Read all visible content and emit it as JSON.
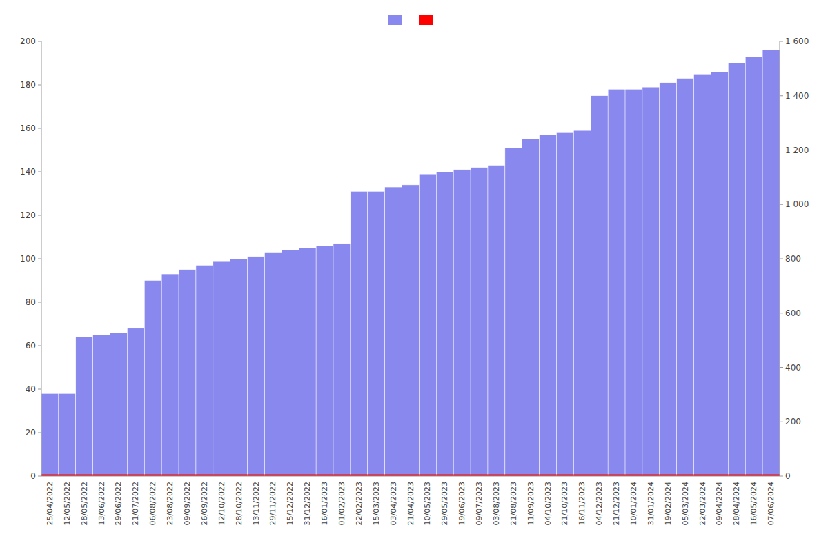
{
  "chart_data": {
    "type": "bar",
    "categories": [
      "25/04/2022",
      "12/05/2022",
      "28/05/2022",
      "13/06/2022",
      "29/06/2022",
      "21/07/2022",
      "06/08/2022",
      "23/08/2022",
      "09/09/2022",
      "26/09/2022",
      "12/10/2022",
      "28/10/2022",
      "13/11/2022",
      "29/11/2022",
      "15/12/2022",
      "31/12/2022",
      "16/01/2023",
      "01/02/2023",
      "22/02/2023",
      "15/03/2023",
      "03/04/2023",
      "21/04/2023",
      "10/05/2023",
      "29/05/2023",
      "19/06/2023",
      "09/07/2023",
      "03/08/2023",
      "21/08/2023",
      "11/09/2023",
      "04/10/2023",
      "21/10/2023",
      "16/11/2023",
      "04/12/2023",
      "21/12/2023",
      "10/01/2024",
      "31/01/2024",
      "19/02/2024",
      "05/03/2024",
      "22/03/2024",
      "09/04/2024",
      "28/04/2024",
      "16/05/2024",
      "07/06/2024"
    ],
    "series": [
      {
        "color": "#8888ee",
        "values": [
          38,
          38,
          64,
          65,
          66,
          68,
          90,
          93,
          95,
          97,
          99,
          100,
          101,
          103,
          104,
          105,
          106,
          107,
          131,
          131,
          133,
          134,
          139,
          140,
          141,
          142,
          143,
          151,
          155,
          157,
          158,
          159,
          175,
          178,
          178,
          179,
          181,
          183,
          185,
          186,
          190,
          193,
          196
        ]
      },
      {
        "color": "#ff0000",
        "values": [
          0.8,
          0.8,
          0.8,
          0.8,
          0.8,
          0.8,
          0.8,
          0.8,
          0.8,
          0.8,
          0.8,
          0.8,
          0.8,
          0.8,
          0.8,
          0.8,
          0.8,
          0.8,
          0.8,
          0.8,
          0.8,
          0.8,
          0.8,
          0.8,
          0.8,
          0.8,
          0.8,
          0.8,
          0.8,
          0.8,
          0.8,
          0.8,
          0.8,
          0.8,
          0.8,
          0.8,
          0.8,
          0.8,
          0.8,
          0.8,
          0.8,
          0.8,
          0.8
        ]
      }
    ],
    "ylim": [
      0,
      200
    ],
    "yticks": [
      0,
      20,
      40,
      60,
      80,
      100,
      120,
      140,
      160,
      180,
      200
    ],
    "y2lim": [
      0,
      1600
    ],
    "y2ticks": [
      0,
      200,
      400,
      600,
      800,
      {
        "value": 1000,
        "label": "1 000"
      },
      {
        "value": 1200,
        "label": "1 200"
      },
      {
        "value": 1400,
        "label": "1 400"
      },
      {
        "value": 1600,
        "label": "1 600"
      }
    ],
    "grid": false,
    "legend": "top"
  }
}
